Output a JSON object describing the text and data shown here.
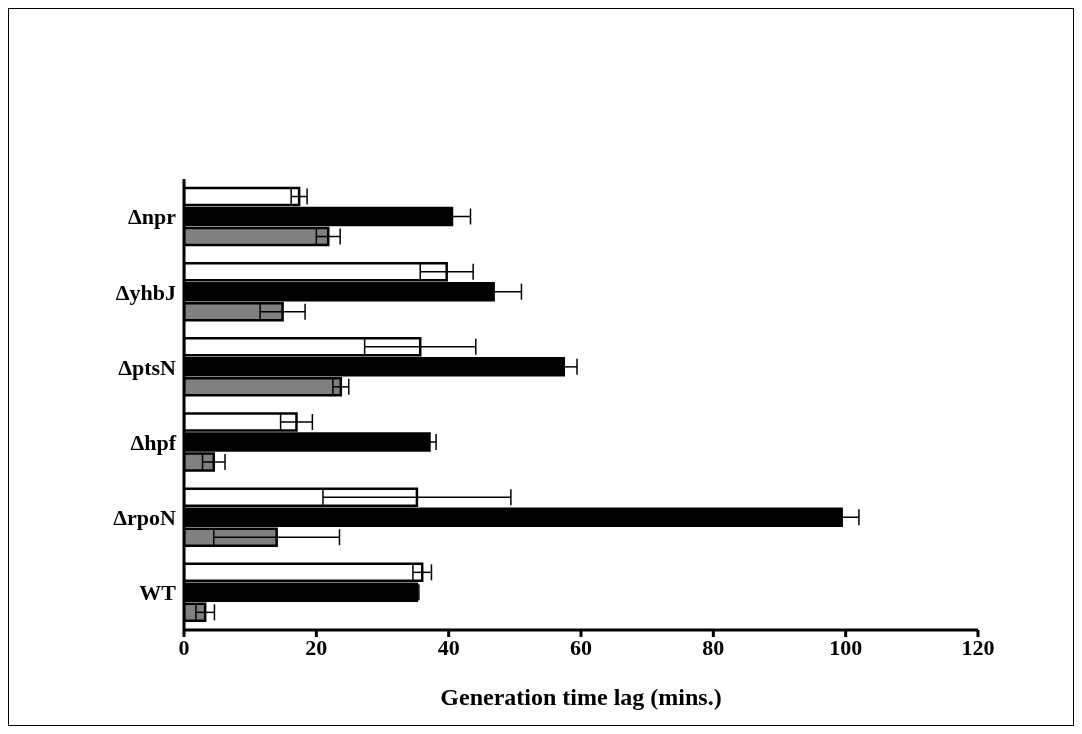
{
  "chart_data": {
    "type": "bar",
    "orientation": "horizontal",
    "xlabel": "Generation time lag (mins.)",
    "categories": [
      "Δnpr",
      "ΔyhbJ",
      "ΔptsN",
      "Δhpf",
      "ΔrpoN",
      "WT"
    ],
    "series": [
      {
        "color": "#ffffff",
        "values": [
          17.4,
          39.7,
          35.7,
          17,
          35.2,
          36
        ],
        "errors": [
          1.2,
          4,
          8.4,
          2.4,
          14.2,
          1.4
        ]
      },
      {
        "color": "#000000",
        "values": [
          40.5,
          46.8,
          57.4,
          37.1,
          99.4,
          35.2
        ],
        "errors": [
          2.8,
          4.2,
          2,
          1,
          2.6,
          0.3
        ]
      },
      {
        "color": "#808080",
        "values": [
          21.8,
          14.9,
          23.7,
          4.5,
          14,
          3.2
        ],
        "errors": [
          1.8,
          3.4,
          1.2,
          1.7,
          9.5,
          1.4
        ]
      }
    ],
    "xlim": [
      0,
      120
    ],
    "xticks": [
      0,
      20,
      40,
      60,
      80,
      100,
      120
    ],
    "grid": false,
    "legend": false
  }
}
